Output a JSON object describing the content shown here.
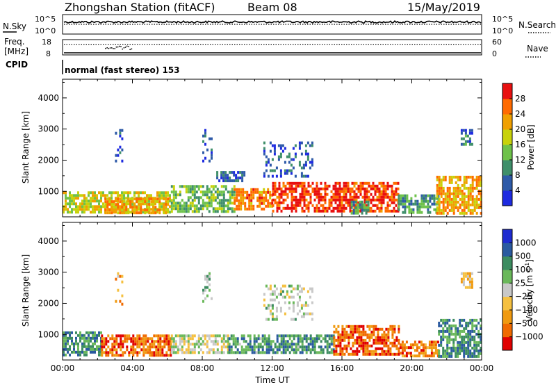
{
  "header": {
    "station": "Zhongshan Station (fitACF)",
    "beam": "Beam 08",
    "date": "15/May/2019"
  },
  "colors": {
    "power_scale": [
      "#1e2be0",
      "#2e5aa8",
      "#3f8f6a",
      "#6ec24a",
      "#c8d20a",
      "#f0a000",
      "#ff6a00",
      "#e81010"
    ],
    "velocity_scale": [
      "#e00000",
      "#f06a00",
      "#f09a10",
      "#f5c040",
      "#c8c8c8",
      "#6ab85a",
      "#3c8c60",
      "#2a5aa0",
      "#1e2bd0"
    ],
    "ground_scatter": "#b0b0b0"
  },
  "chart_data": [
    {
      "type": "line",
      "panel": "sky-search",
      "left_label": "N.Sky",
      "right_label": "N.Search",
      "left_ticks": [
        "10^5",
        "10^0"
      ],
      "right_ticks": [
        "10^5",
        "10^0"
      ],
      "series": [
        {
          "name": "N.Sky",
          "style": "solid",
          "level": 0.62
        },
        {
          "name": "N.Search",
          "style": "dotted",
          "level": 0.5
        }
      ]
    },
    {
      "type": "line",
      "panel": "freq-nave",
      "left_label": "Freq. [MHz]",
      "right_label": "Nave",
      "left_ticks": [
        "18",
        "8"
      ],
      "right_ticks": [
        "60",
        "0"
      ],
      "series": [
        {
          "name": "Freq",
          "style": "solid",
          "values_note": "8"
        },
        {
          "name": "Nave",
          "style": "dotted",
          "value": 40
        }
      ]
    },
    {
      "type": "table",
      "panel": "cpid",
      "label": "CPID",
      "text": "normal (fast stereo) 153"
    },
    {
      "type": "heatmap",
      "panel": "power",
      "ylabel": "Slant Range [km]",
      "ylim": [
        180,
        4600
      ],
      "yticks": [
        1000,
        2000,
        3000,
        4000
      ],
      "xlim": [
        0,
        24
      ],
      "xticks": [
        "00:00",
        "04:00",
        "08:00",
        "12:00",
        "16:00",
        "20:00",
        "00:00"
      ],
      "colorbar": {
        "label": "Power [dB]",
        "range": [
          0,
          32
        ],
        "ticks": [
          "4",
          "8",
          "12",
          "16",
          "20",
          "24",
          "28"
        ]
      },
      "blobs": [
        {
          "t": [
            0.0,
            6.2
          ],
          "r": [
            300,
            1000
          ],
          "level": 0.55
        },
        {
          "t": [
            2.4,
            6.0
          ],
          "r": [
            350,
            800
          ],
          "level": 0.72
        },
        {
          "t": [
            6.2,
            9.8
          ],
          "r": [
            350,
            1200
          ],
          "level": 0.42
        },
        {
          "t": [
            8.8,
            10.4
          ],
          "r": [
            1300,
            1650
          ],
          "level": 0.2
        },
        {
          "t": [
            9.8,
            12.0
          ],
          "r": [
            400,
            1100
          ],
          "level": 0.75
        },
        {
          "t": [
            12.0,
            19.2
          ],
          "r": [
            400,
            1300
          ],
          "level": 0.88
        },
        {
          "t": [
            11.5,
            14.3
          ],
          "r": [
            1500,
            2600
          ],
          "level": 0.18
        },
        {
          "t": [
            16.5,
            17.5
          ],
          "r": [
            300,
            700
          ],
          "level": 0.35
        },
        {
          "t": [
            19.2,
            21.5
          ],
          "r": [
            300,
            900
          ],
          "level": 0.35
        },
        {
          "t": [
            21.4,
            24.0
          ],
          "r": [
            300,
            1500
          ],
          "level": 0.7
        },
        {
          "t": [
            3.0,
            3.4
          ],
          "r": [
            2000,
            3000
          ],
          "level": 0.15
        },
        {
          "t": [
            8.0,
            8.5
          ],
          "r": [
            2000,
            3000
          ],
          "level": 0.15
        },
        {
          "t": [
            22.8,
            23.4
          ],
          "r": [
            2500,
            3000
          ],
          "level": 0.25
        }
      ]
    },
    {
      "type": "heatmap",
      "panel": "velocity",
      "ylabel": "Slant Range [km]",
      "ylim": [
        180,
        4600
      ],
      "yticks": [
        1000,
        2000,
        3000,
        4000
      ],
      "xlim": [
        0,
        24
      ],
      "xticks": [
        "00:00",
        "04:00",
        "08:00",
        "12:00",
        "16:00",
        "20:00",
        "00:00"
      ],
      "xlabel": "Time UT",
      "colorbar": {
        "label": "Velocity [m s^-1]",
        "range": [
          -1200,
          1200
        ],
        "ticks": [
          "1000",
          "500",
          "100",
          "25",
          "-25",
          "-100",
          "-500",
          "-1000"
        ]
      },
      "blobs": [
        {
          "t": [
            0.0,
            2.2
          ],
          "r": [
            300,
            1100
          ],
          "level": 0.72
        },
        {
          "t": [
            2.2,
            6.2
          ],
          "r": [
            300,
            1000
          ],
          "level": 0.18
        },
        {
          "t": [
            6.2,
            9.5
          ],
          "r": [
            400,
            1000
          ],
          "level": 0.5
        },
        {
          "t": [
            9.5,
            15.5
          ],
          "r": [
            400,
            1000
          ],
          "level": 0.7
        },
        {
          "t": [
            11.5,
            14.3
          ],
          "r": [
            1500,
            2600
          ],
          "level": 0.55
        },
        {
          "t": [
            15.5,
            19.3
          ],
          "r": [
            400,
            1300
          ],
          "level": 0.15
        },
        {
          "t": [
            19.3,
            21.5
          ],
          "r": [
            300,
            800
          ],
          "level": 0.2
        },
        {
          "t": [
            21.5,
            24.0
          ],
          "r": [
            300,
            1500
          ],
          "level": 0.72
        },
        {
          "t": [
            3.0,
            3.4
          ],
          "r": [
            2000,
            3000
          ],
          "level": 0.3
        },
        {
          "t": [
            8.0,
            8.5
          ],
          "r": [
            2000,
            3000
          ],
          "level": 0.6
        },
        {
          "t": [
            22.8,
            23.4
          ],
          "r": [
            2500,
            3000
          ],
          "level": 0.4
        }
      ]
    }
  ]
}
